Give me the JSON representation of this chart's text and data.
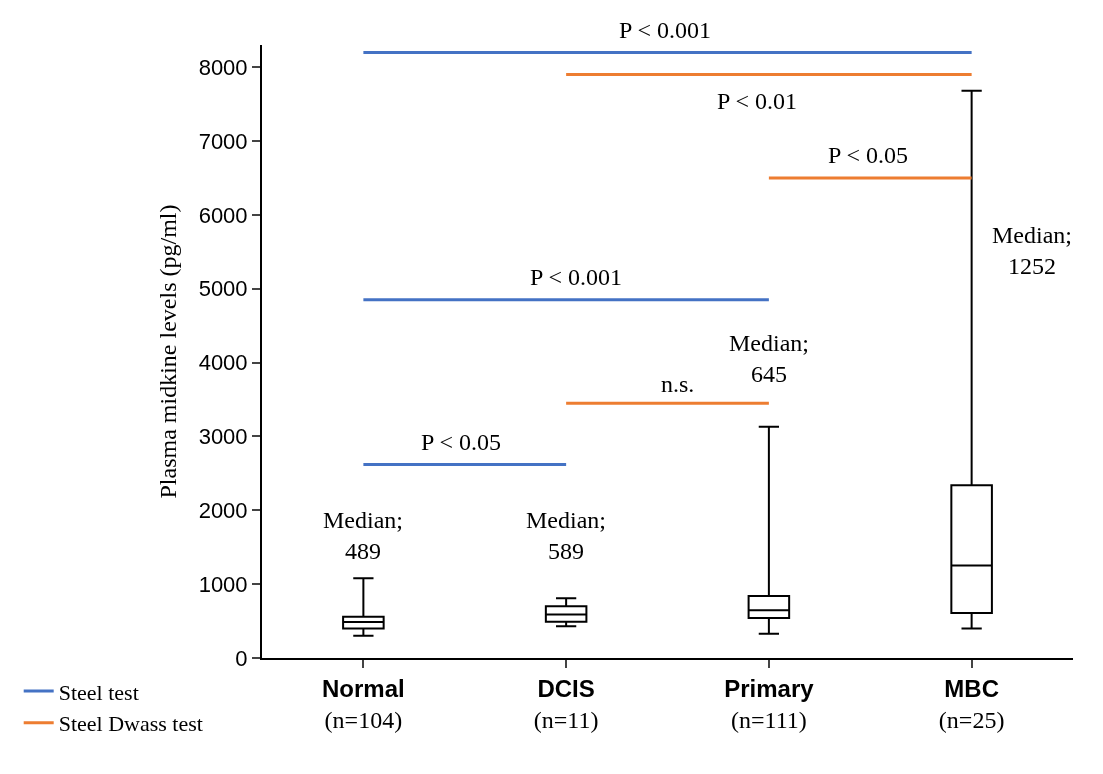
{
  "chart_data": {
    "type": "box",
    "ylabel": "Plasma midkine levels (pg/ml)",
    "categories": [
      "Normal\n(n=104)",
      "DCIS\n(n=11)",
      "Primary\n(n=111)",
      "MBC\n(n=25)"
    ],
    "boxes": [
      {
        "low": 300,
        "q1": 400,
        "median": 489,
        "q3": 560,
        "high": 1080
      },
      {
        "low": 430,
        "q1": 490,
        "median": 589,
        "q3": 700,
        "high": 810
      },
      {
        "low": 330,
        "q1": 540,
        "median": 645,
        "q3": 840,
        "high": 3130
      },
      {
        "low": 400,
        "q1": 610,
        "median": 1252,
        "q3": 2340,
        "high": 7680
      }
    ],
    "series": [
      {
        "type": "line",
        "name": "Steel test",
        "color": "#4472c4",
        "x": [
          "Normal\n(n=104)",
          "MBC\n(n=25)",
          "MBC\n(n=25)",
          "Normal\n(n=104)",
          "Primary\n(n=111)",
          "Primary\n(n=111)",
          "Normal\n(n=104)",
          "DCIS\n(n=11)"
        ],
        "values": [
          8200,
          8200,
          null,
          4850,
          4850,
          null,
          2620,
          2620
        ]
      },
      {
        "type": "line",
        "name": "Steel Dwass test",
        "color": "#ed7d31",
        "x": [
          "DCIS\n(n=11)",
          "MBC\n(n=25)",
          "MBC\n(n=25)",
          "Primary\n(n=111)",
          "MBC\n(n=25)",
          "MBC\n(n=25)",
          "DCIS\n(n=11)",
          "Primary\n(n=111)"
        ],
        "values": [
          7900,
          7900,
          null,
          6500,
          6500,
          null,
          3450,
          3450
        ]
      }
    ],
    "annotations": [
      "P < 0.001",
      "P < 0.01",
      "P < 0.05",
      "P < 0.001",
      "n.s.",
      "P < 0.05",
      "Median;\n489",
      "Median;\n589",
      "Median;\n645",
      "Median;\n1252"
    ],
    "ylim": [
      0,
      8300
    ],
    "yticks": [
      0,
      1000,
      2000,
      3000,
      4000,
      5000,
      6000,
      7000,
      8000
    ],
    "legend": "bottom left"
  }
}
